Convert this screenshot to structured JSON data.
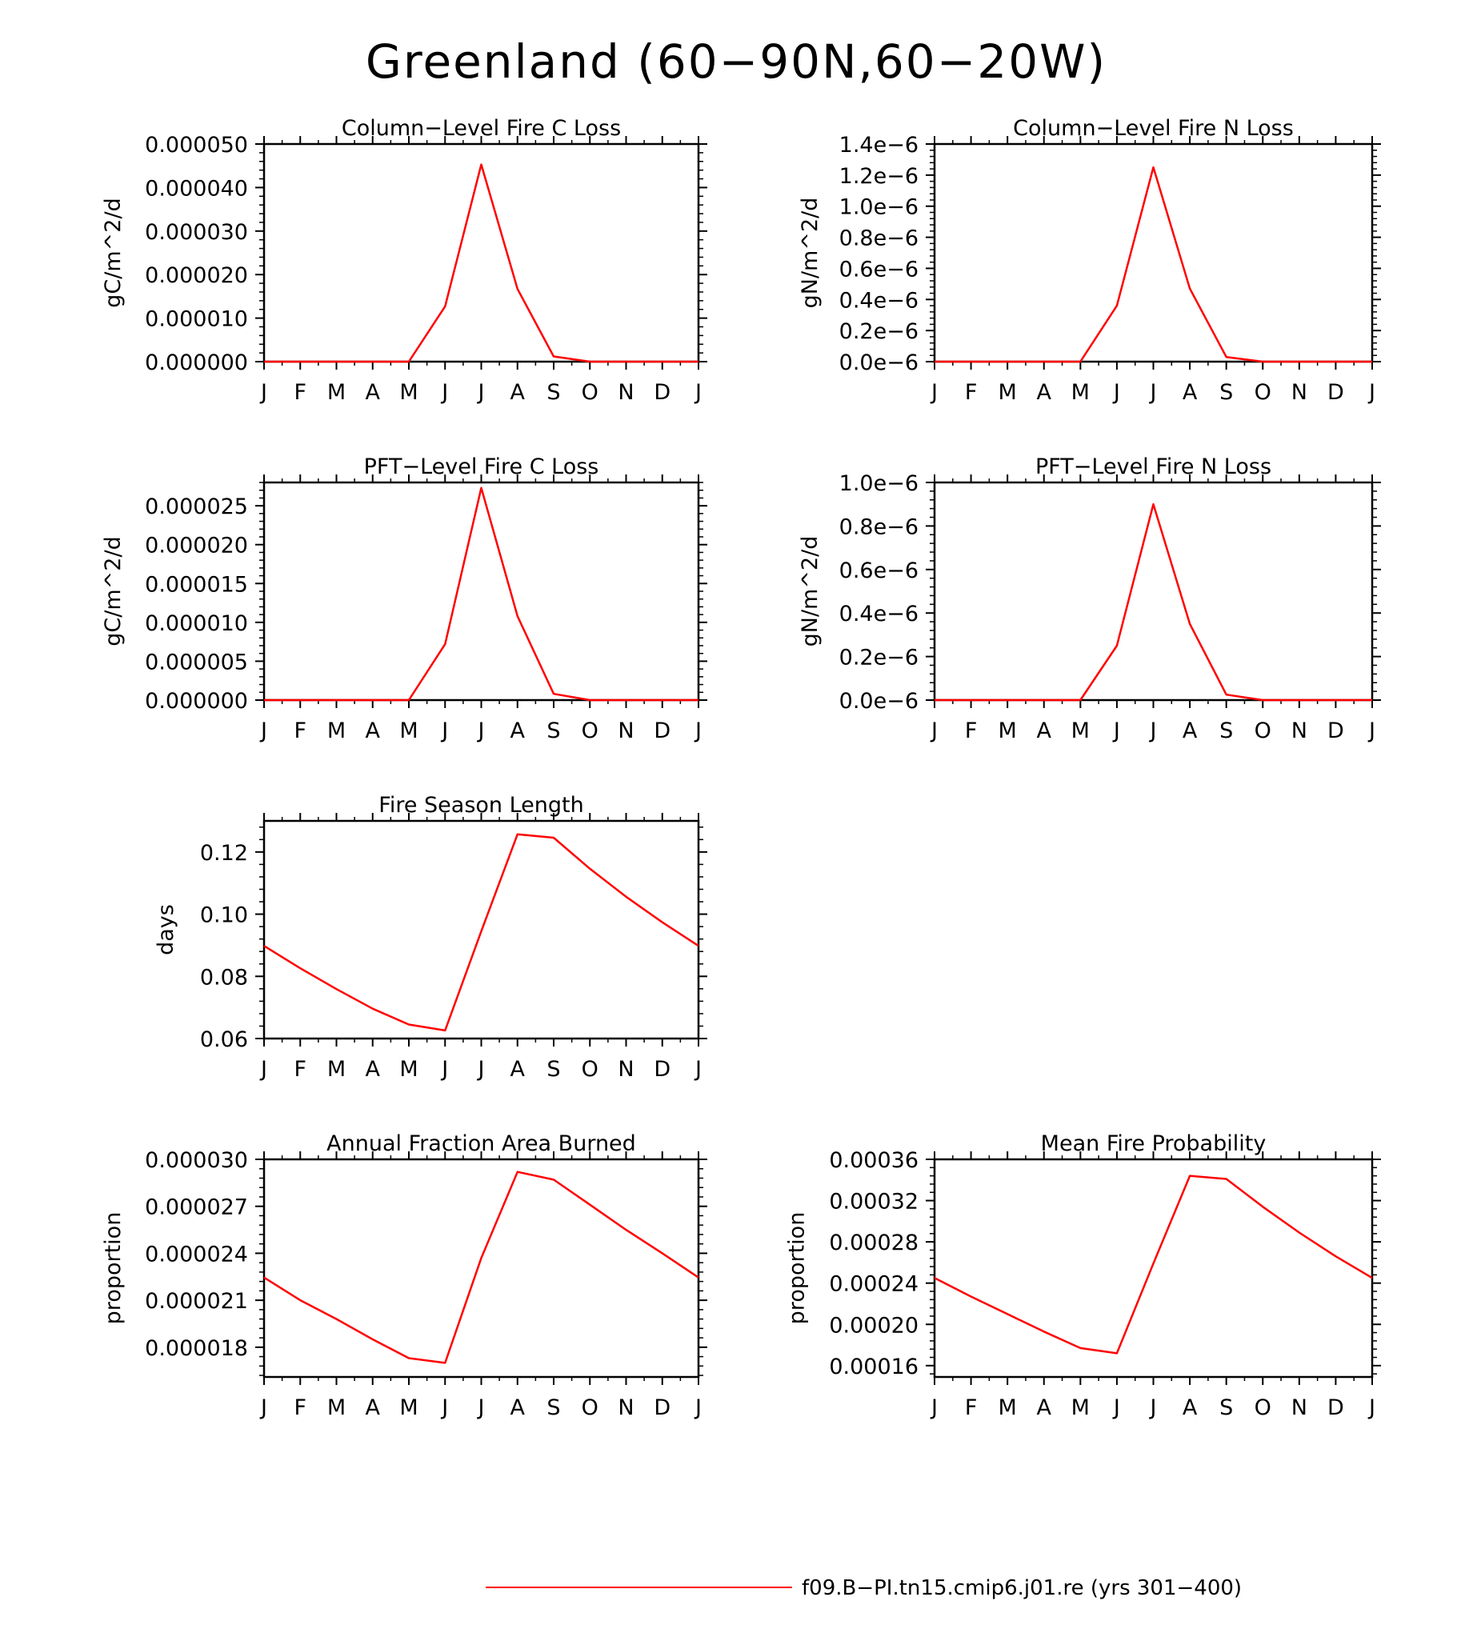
{
  "figure": {
    "title": "Greenland (60−90N,60−20W)"
  },
  "legend": {
    "label": "f09.B−PI.tn15.cmip6.j01.re (yrs 301−400)",
    "color": "#ff0000"
  },
  "chart_data": [
    {
      "id": "col-fire-c",
      "type": "line",
      "title": "Column−Level Fire C Loss",
      "ylabel": "gC/m^2/d",
      "xlabel": "",
      "categories": [
        "J",
        "F",
        "M",
        "A",
        "M",
        "J",
        "J",
        "A",
        "S",
        "O",
        "N",
        "D",
        "J"
      ],
      "ylim": [
        0,
        5e-05
      ],
      "yticks": [
        0,
        1e-05,
        2e-05,
        3e-05,
        4e-05,
        5e-05
      ],
      "ytick_labels": [
        "0.000000",
        "0.000010",
        "0.000020",
        "0.000030",
        "0.000040",
        "0.000050"
      ],
      "series": [
        {
          "values": [
            0,
            0,
            0,
            0,
            0,
            1.27e-05,
            4.53e-05,
            1.67e-05,
            1.2e-06,
            0,
            0,
            0,
            0
          ]
        }
      ]
    },
    {
      "id": "col-fire-n",
      "type": "line",
      "title": "Column−Level Fire N Loss",
      "ylabel": "gN/m^2/d",
      "xlabel": "",
      "categories": [
        "J",
        "F",
        "M",
        "A",
        "M",
        "J",
        "J",
        "A",
        "S",
        "O",
        "N",
        "D",
        "J"
      ],
      "ylim": [
        0,
        1.4e-06
      ],
      "yticks": [
        0,
        2e-07,
        4e-07,
        6e-07,
        8e-07,
        1e-06,
        1.2e-06,
        1.4e-06
      ],
      "ytick_labels": [
        "0.0e−6",
        "0.2e−6",
        "0.4e−6",
        "0.6e−6",
        "0.8e−6",
        "1.0e−6",
        "1.2e−6",
        "1.4e−6"
      ],
      "series": [
        {
          "values": [
            0,
            0,
            0,
            0,
            0,
            3.6e-07,
            1.25e-06,
            4.7e-07,
            3e-08,
            0,
            0,
            0,
            0
          ]
        }
      ]
    },
    {
      "id": "pft-fire-c",
      "type": "line",
      "title": "PFT−Level Fire C Loss",
      "ylabel": "gC/m^2/d",
      "xlabel": "",
      "categories": [
        "J",
        "F",
        "M",
        "A",
        "M",
        "J",
        "J",
        "A",
        "S",
        "O",
        "N",
        "D",
        "J"
      ],
      "ylim": [
        0,
        2.8e-05
      ],
      "yticks": [
        0,
        5e-06,
        1e-05,
        1.5e-05,
        2e-05,
        2.5e-05
      ],
      "ytick_labels": [
        "0.000000",
        "0.000005",
        "0.000010",
        "0.000015",
        "0.000020",
        "0.000025"
      ],
      "series": [
        {
          "values": [
            0,
            0,
            0,
            0,
            0,
            7.2e-06,
            2.73e-05,
            1.08e-05,
            8e-07,
            0,
            0,
            0,
            0
          ]
        }
      ]
    },
    {
      "id": "pft-fire-n",
      "type": "line",
      "title": "PFT−Level Fire N Loss",
      "ylabel": "gN/m^2/d",
      "xlabel": "",
      "categories": [
        "J",
        "F",
        "M",
        "A",
        "M",
        "J",
        "J",
        "A",
        "S",
        "O",
        "N",
        "D",
        "J"
      ],
      "ylim": [
        0,
        1e-06
      ],
      "yticks": [
        0,
        2e-07,
        4e-07,
        6e-07,
        8e-07,
        1e-06
      ],
      "ytick_labels": [
        "0.0e−6",
        "0.2e−6",
        "0.4e−6",
        "0.6e−6",
        "0.8e−6",
        "1.0e−6"
      ],
      "series": [
        {
          "values": [
            0,
            0,
            0,
            0,
            0,
            2.5e-07,
            9e-07,
            3.5e-07,
            2.5e-08,
            0,
            0,
            0,
            0
          ]
        }
      ]
    },
    {
      "id": "fire-season",
      "type": "line",
      "title": "Fire Season Length",
      "ylabel": "days",
      "xlabel": "",
      "categories": [
        "J",
        "F",
        "M",
        "A",
        "M",
        "J",
        "J",
        "A",
        "S",
        "O",
        "N",
        "D",
        "J"
      ],
      "ylim": [
        0.06,
        0.13
      ],
      "yticks": [
        0.06,
        0.08,
        0.1,
        0.12
      ],
      "ytick_labels": [
        "0.06",
        "0.08",
        "0.10",
        "0.12"
      ],
      "series": [
        {
          "values": [
            0.0898,
            0.0826,
            0.0759,
            0.0696,
            0.0645,
            0.0626,
            0.0945,
            0.1257,
            0.1246,
            0.1146,
            0.1056,
            0.0974,
            0.0898
          ]
        }
      ]
    },
    {
      "id": "frac-area-burned",
      "type": "line",
      "title": "Annual Fraction Area Burned",
      "ylabel": "proportion",
      "xlabel": "",
      "categories": [
        "J",
        "F",
        "M",
        "A",
        "M",
        "J",
        "J",
        "A",
        "S",
        "O",
        "N",
        "D",
        "J"
      ],
      "ylim": [
        1.61e-05,
        3e-05
      ],
      "yticks": [
        1.8e-05,
        2.1e-05,
        2.4e-05,
        2.7e-05,
        3e-05
      ],
      "ytick_labels": [
        "0.000018",
        "0.000021",
        "0.000024",
        "0.000027",
        "0.000030"
      ],
      "series": [
        {
          "values": [
            2.245e-05,
            2.1e-05,
            1.98e-05,
            1.85e-05,
            1.73e-05,
            1.7e-05,
            2.37e-05,
            2.92e-05,
            2.87e-05,
            2.71e-05,
            2.55e-05,
            2.4e-05,
            2.245e-05
          ]
        }
      ]
    },
    {
      "id": "mean-fire-prob",
      "type": "line",
      "title": "Mean Fire Probability",
      "ylabel": "proportion",
      "xlabel": "",
      "categories": [
        "J",
        "F",
        "M",
        "A",
        "M",
        "J",
        "J",
        "A",
        "S",
        "O",
        "N",
        "D",
        "J"
      ],
      "ylim": [
        0.000149,
        0.00036
      ],
      "yticks": [
        0.00016,
        0.0002,
        0.00024,
        0.00028,
        0.00032,
        0.00036
      ],
      "ytick_labels": [
        "0.00016",
        "0.00020",
        "0.00024",
        "0.00028",
        "0.00032",
        "0.00036"
      ],
      "series": [
        {
          "values": [
            0.000245,
            0.000227,
            0.00021,
            0.000193,
            0.000177,
            0.000172,
            0.000259,
            0.000344,
            0.000341,
            0.000314,
            0.000289,
            0.000266,
            0.000245
          ]
        }
      ]
    }
  ]
}
